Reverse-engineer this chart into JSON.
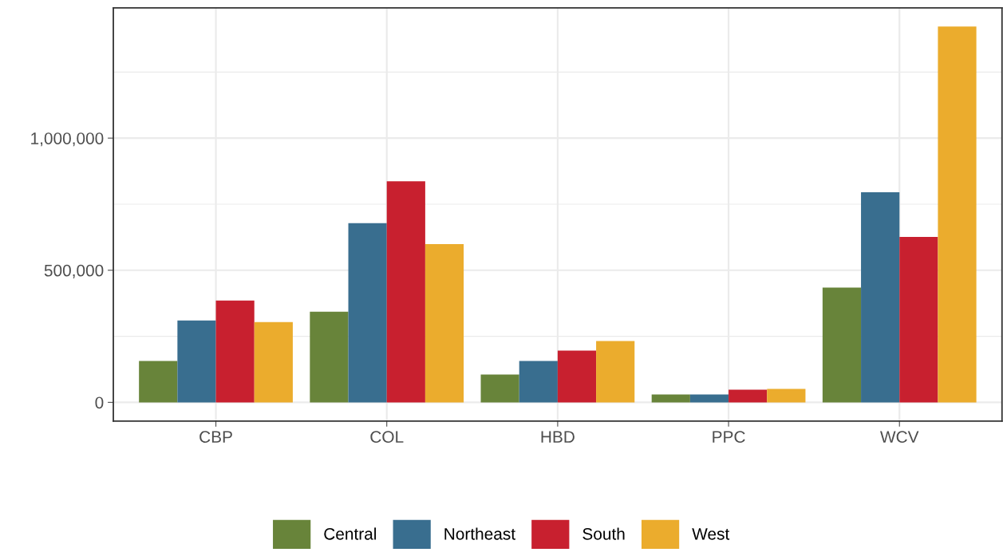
{
  "chart_data": {
    "type": "bar",
    "categories": [
      "CBP",
      "COL",
      "HBD",
      "PPC",
      "WCV"
    ],
    "series": [
      {
        "name": "Central",
        "color": "#68843a",
        "values": [
          157000,
          343000,
          105000,
          30000,
          434000
        ]
      },
      {
        "name": "Northeast",
        "color": "#396e8f",
        "values": [
          310000,
          678000,
          157000,
          30000,
          795000
        ]
      },
      {
        "name": "South",
        "color": "#c8202f",
        "values": [
          385000,
          837000,
          196000,
          48000,
          626000
        ]
      },
      {
        "name": "West",
        "color": "#ebac2d",
        "values": [
          304000,
          599000,
          232000,
          51000,
          1422000
        ]
      }
    ],
    "ylim": [
      -71000,
      1493000
    ],
    "yticks": [
      {
        "value": 0,
        "label": "0"
      },
      {
        "value": 500000,
        "label": "500,000"
      },
      {
        "value": 1000000,
        "label": "1,000,000"
      }
    ],
    "grid": true,
    "legend": "bottom"
  }
}
